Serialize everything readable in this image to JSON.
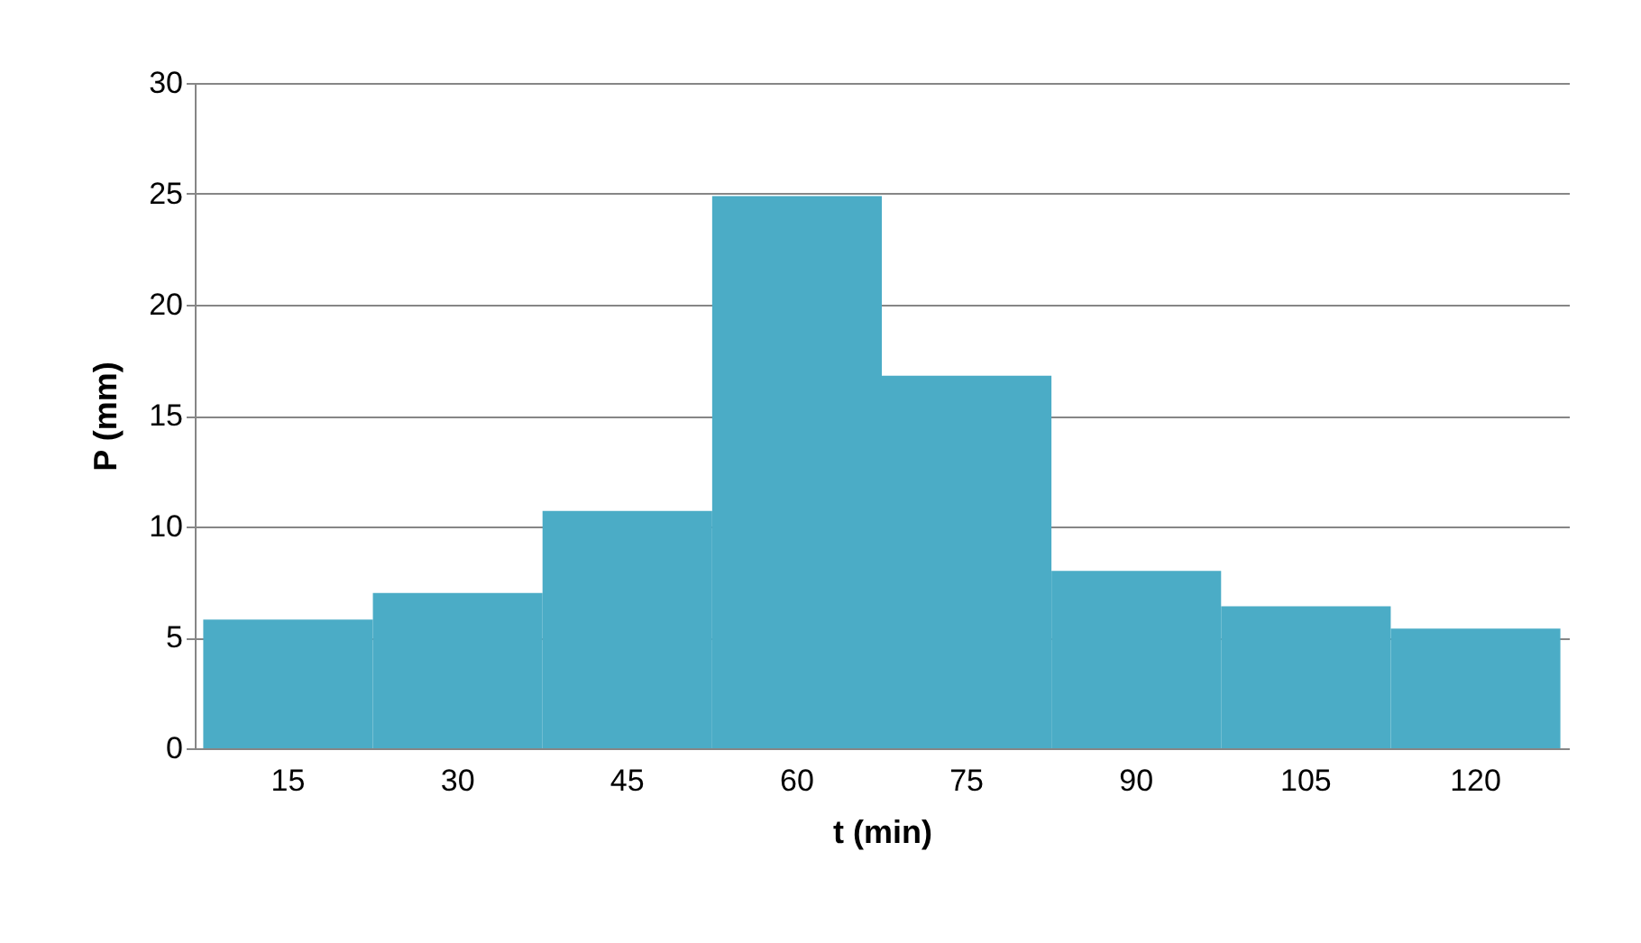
{
  "chart_data": {
    "type": "bar",
    "xlabel": "t (min)",
    "ylabel": "P (mm)",
    "categories": [
      "15",
      "30",
      "45",
      "60",
      "75",
      "90",
      "105",
      "120"
    ],
    "values": [
      5.8,
      7.0,
      10.7,
      24.9,
      16.8,
      8.0,
      6.4,
      5.4
    ],
    "color": "#4bacc6",
    "ylim": [
      0,
      30
    ],
    "yticks": [
      0,
      5,
      10,
      15,
      20,
      25,
      30
    ],
    "grid": "y"
  }
}
